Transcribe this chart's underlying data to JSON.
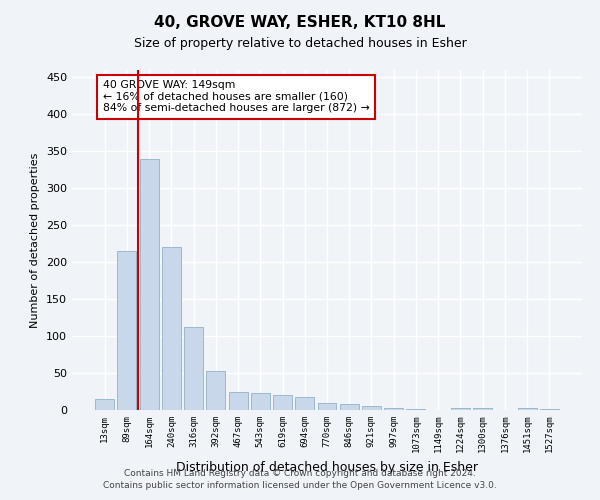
{
  "title": "40, GROVE WAY, ESHER, KT10 8HL",
  "subtitle": "Size of property relative to detached houses in Esher",
  "xlabel": "Distribution of detached houses by size in Esher",
  "ylabel": "Number of detached properties",
  "bar_labels": [
    "13sqm",
    "89sqm",
    "164sqm",
    "240sqm",
    "316sqm",
    "392sqm",
    "467sqm",
    "543sqm",
    "619sqm",
    "694sqm",
    "770sqm",
    "846sqm",
    "921sqm",
    "997sqm",
    "1073sqm",
    "1149sqm",
    "1224sqm",
    "1300sqm",
    "1376sqm",
    "1451sqm",
    "1527sqm"
  ],
  "bar_values": [
    15,
    215,
    340,
    220,
    112,
    53,
    25,
    23,
    20,
    18,
    10,
    8,
    5,
    3,
    2,
    0.5,
    3,
    3,
    0.5,
    3,
    2
  ],
  "bar_color": "#c8d8ea",
  "bar_edgecolor": "#9ab8cc",
  "vline_color": "#cc0000",
  "vline_x_index": 1.5,
  "annotation_text": "40 GROVE WAY: 149sqm\n← 16% of detached houses are smaller (160)\n84% of semi-detached houses are larger (872) →",
  "annotation_box_edgecolor": "#cc0000",
  "annotation_facecolor": "white",
  "ylim": [
    0,
    460
  ],
  "yticks": [
    0,
    50,
    100,
    150,
    200,
    250,
    300,
    350,
    400,
    450
  ],
  "footer_text": "Contains HM Land Registry data © Crown copyright and database right 2024.\nContains public sector information licensed under the Open Government Licence v3.0.",
  "bg_color": "#f0f4f8",
  "grid_color": "#ffffff"
}
